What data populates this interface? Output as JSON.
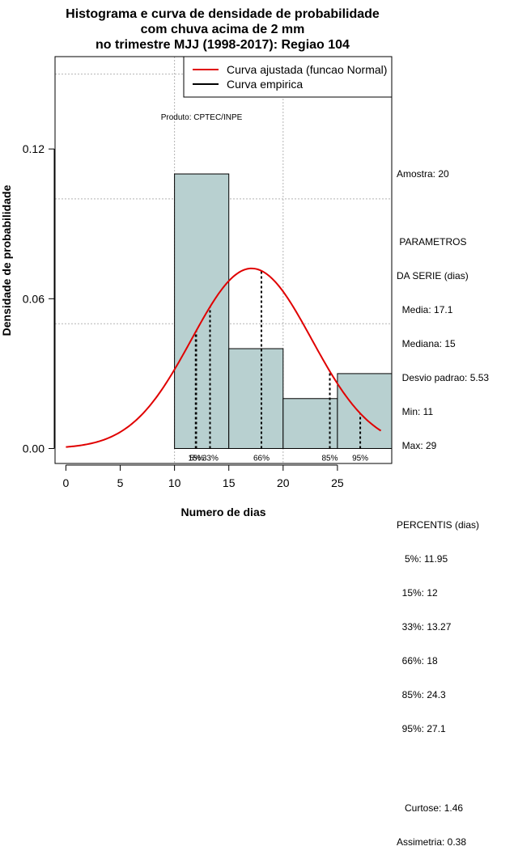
{
  "chart_data": {
    "type": "bar",
    "title": [
      "Histograma e curva de densidade de probabilidade",
      "com chuva acima de 2 mm",
      "no trimestre MJJ (1998-2017): Regiao 104"
    ],
    "xlabel": "Numero de dias",
    "ylabel": "Densidade de probabilidade",
    "xlim": [
      -1,
      30
    ],
    "ylim": [
      -0.006,
      0.157
    ],
    "x_ticks": [
      0,
      5,
      10,
      15,
      20,
      25
    ],
    "x_tick_labels": [
      "0",
      "5",
      "10",
      "15",
      "20",
      "25"
    ],
    "y_ticks": [
      0.0,
      0.06,
      0.12
    ],
    "y_tick_labels": [
      "0.00",
      "0.06",
      "0.12"
    ],
    "grid_x": [
      10,
      20,
      30
    ],
    "grid_y": [
      0.05,
      0.1,
      0.15
    ],
    "bins": [
      {
        "start": 10,
        "end": 15,
        "density": 0.11
      },
      {
        "start": 15,
        "end": 20,
        "density": 0.04
      },
      {
        "start": 20,
        "end": 25,
        "density": 0.02
      },
      {
        "start": 25,
        "end": 30,
        "density": 0.03
      }
    ],
    "normal_curve": {
      "mean": 17.1,
      "sd": 5.53,
      "x_from": 0,
      "x_to": 29
    },
    "percentile_lines": [
      {
        "label": "5%",
        "x": 11.95
      },
      {
        "label": "15%",
        "x": 12
      },
      {
        "label": "33%",
        "x": 13.27
      },
      {
        "label": "66%",
        "x": 18
      },
      {
        "label": "85%",
        "x": 24.3
      },
      {
        "label": "95%",
        "x": 27.1
      }
    ],
    "percentile_text_labels": [
      {
        "text": "5%",
        "x": 11.9
      },
      {
        "text": "15%",
        "x": 12.0
      },
      {
        "text": "33%",
        "x": 13.3
      },
      {
        "text": "66%",
        "x": 18.0
      },
      {
        "text": "85%",
        "x": 24.3
      },
      {
        "text": "95%",
        "x": 27.1
      }
    ],
    "legend": {
      "position": "top-right",
      "entries": [
        {
          "label": "Curva ajustada (funcao Normal)",
          "color": "#e00000"
        },
        {
          "label": "Curva empirica",
          "color": "#000000"
        }
      ]
    },
    "annotation": "Produto: CPTEC/INPE",
    "colors": {
      "bar_fill": "#b8d0d0",
      "curve": "#e00000",
      "grid": "#b4b4b4"
    }
  },
  "stats_panel": {
    "amostra": "Amostra: 20",
    "parametros_title": " PARAMETROS",
    "parametros_sub": "DA SERIE (dias)",
    "parametros": [
      "  Media: 17.1",
      "  Mediana: 15",
      "  Desvio padrao: 5.53",
      "  Min: 11",
      "  Max: 29"
    ],
    "percentis_title": "PERCENTIS (dias)",
    "percentis": [
      "   5%: 11.95",
      "  15%: 12",
      "  33%: 13.27",
      "  66%: 18",
      "  85%: 24.3",
      "  95%: 27.1"
    ],
    "curtose": "   Curtose: 1.46",
    "assimetria": "Assimetria: 0.38"
  }
}
